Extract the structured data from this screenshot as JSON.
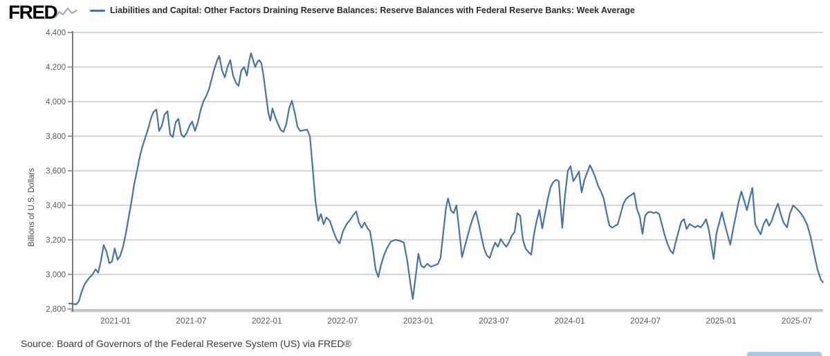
{
  "header": {
    "logo_text": "FRED",
    "legend": {
      "key_color": "#4572a7",
      "title": "Liabilities and Capital: Other Factors Draining Reserve Balances: Reserve Balances with Federal Reserve Banks: Week Average"
    }
  },
  "footer": {
    "source_text": "Source: Board of Governors of the Federal Reserve System (US) via FRED®"
  },
  "bottom_right_bar": {
    "color": "#9fcce9"
  },
  "chart_data": {
    "type": "line",
    "title": "Liabilities and Capital: Other Factors Draining Reserve Balances: Reserve Balances with Federal Reserve Banks: Week Average",
    "xlabel": "",
    "ylabel": "Billions of U.S. Dollars",
    "grid": true,
    "legend_position": "top",
    "x_domain": [
      2020.694,
      2025.674
    ],
    "y_domain": [
      2800,
      4400
    ],
    "colors": {
      "line": "#4572a7",
      "grid": "#d6d6d6",
      "axis": "#7a7a7a",
      "axis_band": "#c7c7c7",
      "tick_label": "#5a5a5a"
    },
    "x_ticks": [
      {
        "label": "2021-01",
        "t": 2021.0
      },
      {
        "label": "2021-07",
        "t": 2021.5
      },
      {
        "label": "2022-01",
        "t": 2022.0
      },
      {
        "label": "2022-07",
        "t": 2022.5
      },
      {
        "label": "2023-01",
        "t": 2023.0
      },
      {
        "label": "2023-07",
        "t": 2023.5
      },
      {
        "label": "2024-01",
        "t": 2024.0
      },
      {
        "label": "2024-07",
        "t": 2024.5
      },
      {
        "label": "2025-01",
        "t": 2025.0
      },
      {
        "label": "2025-07",
        "t": 2025.5
      }
    ],
    "y_ticks": [
      {
        "label": "4,400",
        "value": 4400
      },
      {
        "label": "4,200",
        "value": 4200
      },
      {
        "label": "4,000",
        "value": 4000
      },
      {
        "label": "3,800",
        "value": 3800
      },
      {
        "label": "3,600",
        "value": 3600
      },
      {
        "label": "3,400",
        "value": 3400
      },
      {
        "label": "3,200",
        "value": 3200
      },
      {
        "label": "3,000",
        "value": 3000
      },
      {
        "label": "2,800",
        "value": 2800
      }
    ],
    "series": [
      {
        "name": "Reserve Balances with Federal Reserve Banks: Week Average",
        "units": "Billions of U.S. Dollars",
        "color": "#4572a7",
        "points": [
          [
            2020.694,
            2832
          ],
          [
            2020.717,
            2830
          ],
          [
            2020.74,
            2827
          ],
          [
            2020.758,
            2845
          ],
          [
            2020.776,
            2898
          ],
          [
            2020.794,
            2940
          ],
          [
            2020.813,
            2965
          ],
          [
            2020.831,
            2985
          ],
          [
            2020.849,
            3000
          ],
          [
            2020.868,
            3030
          ],
          [
            2020.886,
            3010
          ],
          [
            2020.904,
            3080
          ],
          [
            2020.922,
            3170
          ],
          [
            2020.941,
            3130
          ],
          [
            2020.959,
            3065
          ],
          [
            2020.977,
            3075
          ],
          [
            2020.995,
            3150
          ],
          [
            2021.014,
            3085
          ],
          [
            2021.032,
            3110
          ],
          [
            2021.05,
            3160
          ],
          [
            2021.069,
            3240
          ],
          [
            2021.087,
            3330
          ],
          [
            2021.105,
            3420
          ],
          [
            2021.123,
            3520
          ],
          [
            2021.142,
            3600
          ],
          [
            2021.16,
            3680
          ],
          [
            2021.178,
            3740
          ],
          [
            2021.196,
            3790
          ],
          [
            2021.215,
            3840
          ],
          [
            2021.233,
            3900
          ],
          [
            2021.251,
            3940
          ],
          [
            2021.27,
            3955
          ],
          [
            2021.288,
            3830
          ],
          [
            2021.306,
            3860
          ],
          [
            2021.324,
            3925
          ],
          [
            2021.343,
            3945
          ],
          [
            2021.361,
            3810
          ],
          [
            2021.379,
            3795
          ],
          [
            2021.397,
            3880
          ],
          [
            2021.416,
            3900
          ],
          [
            2021.434,
            3810
          ],
          [
            2021.452,
            3795
          ],
          [
            2021.471,
            3820
          ],
          [
            2021.489,
            3860
          ],
          [
            2021.507,
            3885
          ],
          [
            2021.525,
            3830
          ],
          [
            2021.544,
            3880
          ],
          [
            2021.562,
            3950
          ],
          [
            2021.58,
            4000
          ],
          [
            2021.598,
            4030
          ],
          [
            2021.617,
            4070
          ],
          [
            2021.635,
            4130
          ],
          [
            2021.653,
            4190
          ],
          [
            2021.672,
            4240
          ],
          [
            2021.685,
            4265
          ],
          [
            2021.704,
            4180
          ],
          [
            2021.722,
            4140
          ],
          [
            2021.74,
            4200
          ],
          [
            2021.758,
            4240
          ],
          [
            2021.777,
            4150
          ],
          [
            2021.795,
            4110
          ],
          [
            2021.813,
            4090
          ],
          [
            2021.831,
            4180
          ],
          [
            2021.85,
            4200
          ],
          [
            2021.868,
            4150
          ],
          [
            2021.882,
            4230
          ],
          [
            2021.895,
            4280
          ],
          [
            2021.909,
            4240
          ],
          [
            2021.923,
            4200
          ],
          [
            2021.937,
            4230
          ],
          [
            2021.95,
            4240
          ],
          [
            2021.964,
            4220
          ],
          [
            2021.978,
            4150
          ],
          [
            2021.991,
            4060
          ],
          [
            2022.01,
            3935
          ],
          [
            2022.023,
            3890
          ],
          [
            2022.037,
            3960
          ],
          [
            2022.055,
            3910
          ],
          [
            2022.074,
            3870
          ],
          [
            2022.092,
            3835
          ],
          [
            2022.11,
            3825
          ],
          [
            2022.128,
            3870
          ],
          [
            2022.147,
            3960
          ],
          [
            2022.165,
            4005
          ],
          [
            2022.183,
            3940
          ],
          [
            2022.202,
            3855
          ],
          [
            2022.22,
            3830
          ],
          [
            2022.243,
            3835
          ],
          [
            2022.266,
            3838
          ],
          [
            2022.284,
            3800
          ],
          [
            2022.302,
            3620
          ],
          [
            2022.32,
            3430
          ],
          [
            2022.339,
            3310
          ],
          [
            2022.357,
            3350
          ],
          [
            2022.375,
            3290
          ],
          [
            2022.393,
            3330
          ],
          [
            2022.416,
            3310
          ],
          [
            2022.439,
            3250
          ],
          [
            2022.462,
            3200
          ],
          [
            2022.48,
            3180
          ],
          [
            2022.503,
            3250
          ],
          [
            2022.526,
            3290
          ],
          [
            2022.549,
            3315
          ],
          [
            2022.572,
            3345
          ],
          [
            2022.59,
            3365
          ],
          [
            2022.608,
            3300
          ],
          [
            2022.626,
            3270
          ],
          [
            2022.645,
            3300
          ],
          [
            2022.663,
            3270
          ],
          [
            2022.681,
            3250
          ],
          [
            2022.7,
            3150
          ],
          [
            2022.718,
            3030
          ],
          [
            2022.736,
            2985
          ],
          [
            2022.754,
            3055
          ],
          [
            2022.773,
            3110
          ],
          [
            2022.795,
            3155
          ],
          [
            2022.818,
            3190
          ],
          [
            2022.85,
            3200
          ],
          [
            2022.878,
            3195
          ],
          [
            2022.905,
            3185
          ],
          [
            2022.928,
            3075
          ],
          [
            2022.946,
            2960
          ],
          [
            2022.964,
            2858
          ],
          [
            2022.983,
            2990
          ],
          [
            2023.001,
            3120
          ],
          [
            2023.019,
            3050
          ],
          [
            2023.038,
            3040
          ],
          [
            2023.06,
            3062
          ],
          [
            2023.083,
            3045
          ],
          [
            2023.106,
            3052
          ],
          [
            2023.129,
            3060
          ],
          [
            2023.147,
            3095
          ],
          [
            2023.166,
            3250
          ],
          [
            2023.184,
            3390
          ],
          [
            2023.197,
            3440
          ],
          [
            2023.216,
            3370
          ],
          [
            2023.234,
            3355
          ],
          [
            2023.252,
            3400
          ],
          [
            2023.271,
            3250
          ],
          [
            2023.289,
            3100
          ],
          [
            2023.307,
            3160
          ],
          [
            2023.325,
            3220
          ],
          [
            2023.344,
            3280
          ],
          [
            2023.362,
            3330
          ],
          [
            2023.38,
            3365
          ],
          [
            2023.398,
            3300
          ],
          [
            2023.417,
            3220
          ],
          [
            2023.435,
            3150
          ],
          [
            2023.453,
            3110
          ],
          [
            2023.472,
            3095
          ],
          [
            2023.49,
            3145
          ],
          [
            2023.508,
            3185
          ],
          [
            2023.526,
            3160
          ],
          [
            2023.545,
            3205
          ],
          [
            2023.563,
            3180
          ],
          [
            2023.581,
            3160
          ],
          [
            2023.599,
            3185
          ],
          [
            2023.618,
            3225
          ],
          [
            2023.636,
            3245
          ],
          [
            2023.654,
            3355
          ],
          [
            2023.673,
            3340
          ],
          [
            2023.691,
            3200
          ],
          [
            2023.709,
            3150
          ],
          [
            2023.727,
            3130
          ],
          [
            2023.746,
            3115
          ],
          [
            2023.764,
            3230
          ],
          [
            2023.782,
            3310
          ],
          [
            2023.8,
            3373
          ],
          [
            2023.819,
            3267
          ],
          [
            2023.837,
            3350
          ],
          [
            2023.855,
            3435
          ],
          [
            2023.874,
            3505
          ],
          [
            2023.892,
            3535
          ],
          [
            2023.91,
            3548
          ],
          [
            2023.928,
            3540
          ],
          [
            2023.951,
            3270
          ],
          [
            2023.969,
            3455
          ],
          [
            2023.988,
            3600
          ],
          [
            2024.006,
            3627
          ],
          [
            2024.024,
            3540
          ],
          [
            2024.042,
            3565
          ],
          [
            2024.061,
            3595
          ],
          [
            2024.079,
            3475
          ],
          [
            2024.097,
            3545
          ],
          [
            2024.116,
            3590
          ],
          [
            2024.134,
            3632
          ],
          [
            2024.152,
            3600
          ],
          [
            2024.17,
            3560
          ],
          [
            2024.189,
            3510
          ],
          [
            2024.207,
            3480
          ],
          [
            2024.225,
            3440
          ],
          [
            2024.243,
            3360
          ],
          [
            2024.262,
            3285
          ],
          [
            2024.28,
            3270
          ],
          [
            2024.298,
            3280
          ],
          [
            2024.317,
            3290
          ],
          [
            2024.335,
            3345
          ],
          [
            2024.353,
            3405
          ],
          [
            2024.371,
            3435
          ],
          [
            2024.39,
            3450
          ],
          [
            2024.408,
            3460
          ],
          [
            2024.426,
            3472
          ],
          [
            2024.444,
            3380
          ],
          [
            2024.463,
            3335
          ],
          [
            2024.481,
            3235
          ],
          [
            2024.499,
            3340
          ],
          [
            2024.518,
            3360
          ],
          [
            2024.536,
            3362
          ],
          [
            2024.554,
            3355
          ],
          [
            2024.572,
            3360
          ],
          [
            2024.591,
            3350
          ],
          [
            2024.609,
            3290
          ],
          [
            2024.627,
            3230
          ],
          [
            2024.645,
            3180
          ],
          [
            2024.664,
            3140
          ],
          [
            2024.682,
            3120
          ],
          [
            2024.7,
            3185
          ],
          [
            2024.718,
            3245
          ],
          [
            2024.737,
            3305
          ],
          [
            2024.755,
            3320
          ],
          [
            2024.773,
            3262
          ],
          [
            2024.792,
            3292
          ],
          [
            2024.81,
            3282
          ],
          [
            2024.828,
            3272
          ],
          [
            2024.846,
            3282
          ],
          [
            2024.865,
            3272
          ],
          [
            2024.883,
            3292
          ],
          [
            2024.901,
            3320
          ],
          [
            2024.919,
            3260
          ],
          [
            2024.938,
            3160
          ],
          [
            2024.951,
            3090
          ],
          [
            2024.97,
            3240
          ],
          [
            2024.988,
            3300
          ],
          [
            2025.006,
            3360
          ],
          [
            2025.025,
            3290
          ],
          [
            2025.043,
            3230
          ],
          [
            2025.061,
            3172
          ],
          [
            2025.079,
            3260
          ],
          [
            2025.098,
            3340
          ],
          [
            2025.116,
            3420
          ],
          [
            2025.134,
            3480
          ],
          [
            2025.152,
            3430
          ],
          [
            2025.171,
            3372
          ],
          [
            2025.189,
            3440
          ],
          [
            2025.207,
            3500
          ],
          [
            2025.226,
            3292
          ],
          [
            2025.244,
            3260
          ],
          [
            2025.262,
            3232
          ],
          [
            2025.28,
            3290
          ],
          [
            2025.299,
            3320
          ],
          [
            2025.317,
            3282
          ],
          [
            2025.335,
            3310
          ],
          [
            2025.353,
            3360
          ],
          [
            2025.376,
            3410
          ],
          [
            2025.394,
            3350
          ],
          [
            2025.413,
            3300
          ],
          [
            2025.436,
            3272
          ],
          [
            2025.454,
            3350
          ],
          [
            2025.477,
            3400
          ],
          [
            2025.5,
            3380
          ],
          [
            2025.522,
            3360
          ],
          [
            2025.545,
            3330
          ],
          [
            2025.568,
            3290
          ],
          [
            2025.591,
            3220
          ],
          [
            2025.614,
            3120
          ],
          [
            2025.637,
            3030
          ],
          [
            2025.659,
            2970
          ],
          [
            2025.673,
            2955
          ]
        ]
      }
    ]
  }
}
